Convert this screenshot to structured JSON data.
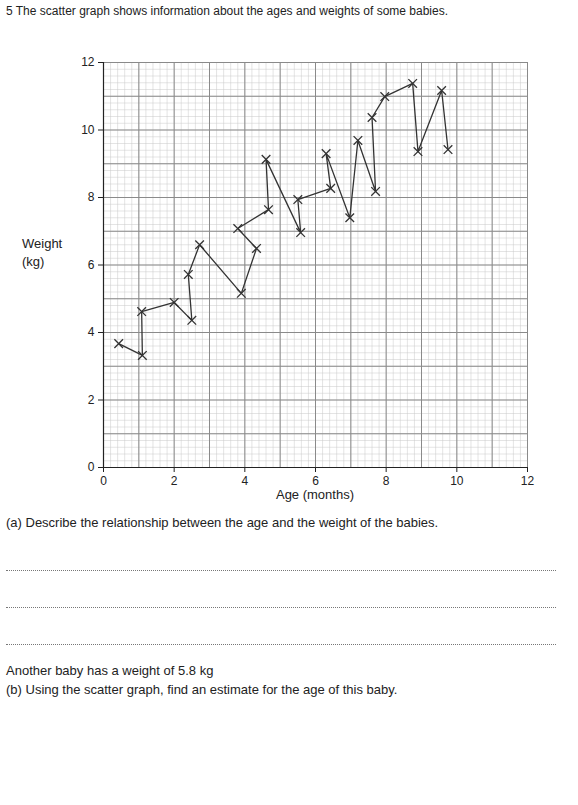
{
  "chart_data": {
    "type": "scatter",
    "title": "5 The scatter graph shows information about the ages and weights of some babies.",
    "x_label": "Age (months)",
    "y_label": "Weight (kg)",
    "x": [
      0.43,
      1.1,
      1.08,
      2.0,
      2.5,
      2.4,
      2.72,
      3.9,
      4.33,
      3.8,
      4.67,
      4.6,
      5.58,
      5.5,
      6.43,
      6.3,
      6.97,
      7.2,
      7.7,
      7.6,
      7.96,
      8.75,
      8.9,
      9.57,
      9.75
    ],
    "values": [
      3.67,
      3.32,
      4.62,
      4.89,
      4.36,
      5.72,
      6.6,
      5.16,
      6.49,
      7.08,
      7.64,
      9.13,
      6.96,
      7.94,
      8.27,
      9.3,
      7.4,
      9.69,
      8.18,
      10.37,
      10.99,
      11.38,
      9.36,
      11.17,
      9.42
    ],
    "xlim": [
      0,
      12
    ],
    "xticks": [
      0,
      2,
      4,
      6,
      8,
      10,
      12
    ],
    "ylim": [
      0,
      12
    ],
    "yticks": [
      0,
      2,
      4,
      6,
      8,
      10,
      12
    ],
    "grid": true,
    "marker": "x",
    "line_style": "solid",
    "color": "#333333",
    "annotations": [
      "(a) Describe the relationship between the age and the weight of the babies.",
      "Another baby has a weight of 5.8 kg",
      "(b) Using the scatter graph, find an estimate for the age of this baby."
    ]
  }
}
